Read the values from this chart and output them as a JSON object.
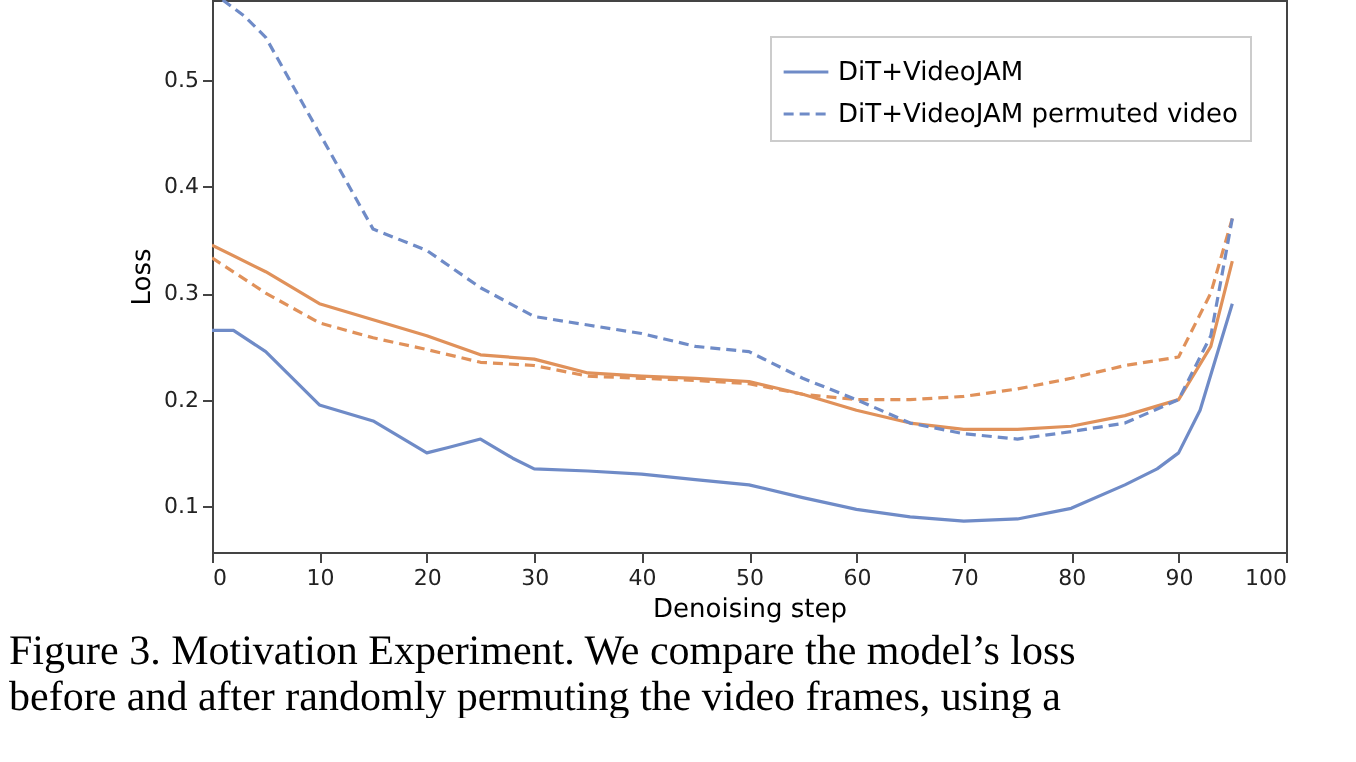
{
  "chart_data": {
    "type": "line",
    "xlabel": "Denoising step",
    "ylabel": "Loss",
    "xlim": [
      0,
      100
    ],
    "xticks": [
      0,
      10,
      20,
      30,
      40,
      50,
      60,
      70,
      80,
      90,
      100
    ],
    "ylim": [
      0.057,
      0.575
    ],
    "yticks": [
      0.1,
      0.2,
      0.3,
      0.4,
      0.5
    ],
    "legend": "top right",
    "grid": false,
    "series": [
      {
        "color": "#e0915a",
        "line_style": "solid",
        "x": [
          0,
          5,
          10,
          15,
          20,
          25,
          30,
          35,
          40,
          45,
          50,
          55,
          60,
          65,
          70,
          75,
          80,
          85,
          90,
          93,
          95
        ],
        "values": [
          0.345,
          0.32,
          0.29,
          0.275,
          0.26,
          0.242,
          0.238,
          0.225,
          0.222,
          0.22,
          0.217,
          0.205,
          0.19,
          0.178,
          0.172,
          0.172,
          0.175,
          0.185,
          0.2,
          0.25,
          0.33
        ]
      },
      {
        "color": "#e0915a",
        "line_style": "dashed",
        "x": [
          0,
          5,
          10,
          15,
          20,
          25,
          30,
          35,
          40,
          45,
          50,
          55,
          60,
          65,
          70,
          75,
          80,
          85,
          90,
          93,
          95
        ],
        "values": [
          0.333,
          0.3,
          0.272,
          0.258,
          0.247,
          0.235,
          0.232,
          0.222,
          0.22,
          0.218,
          0.215,
          0.205,
          0.2,
          0.2,
          0.203,
          0.21,
          0.22,
          0.232,
          0.24,
          0.3,
          0.37
        ]
      },
      {
        "name": "DiT+VideoJAM",
        "color": "#6f8bc7",
        "line_style": "solid",
        "x": [
          0,
          2,
          5,
          10,
          15,
          20,
          22,
          25,
          28,
          30,
          35,
          40,
          45,
          50,
          55,
          60,
          65,
          70,
          75,
          80,
          85,
          88,
          90,
          92,
          95
        ],
        "values": [
          0.265,
          0.265,
          0.245,
          0.195,
          0.18,
          0.15,
          0.155,
          0.163,
          0.145,
          0.135,
          0.133,
          0.13,
          0.125,
          0.12,
          0.108,
          0.097,
          0.09,
          0.086,
          0.088,
          0.098,
          0.12,
          0.135,
          0.15,
          0.19,
          0.29
        ]
      },
      {
        "name": "DiT+VideoJAM permuted video",
        "color": "#6f8bc7",
        "line_style": "dashed",
        "x": [
          1,
          3,
          5,
          10,
          15,
          20,
          25,
          30,
          35,
          40,
          45,
          50,
          55,
          60,
          65,
          70,
          75,
          80,
          85,
          90,
          93,
          95
        ],
        "values": [
          0.575,
          0.56,
          0.54,
          0.45,
          0.36,
          0.34,
          0.305,
          0.278,
          0.27,
          0.262,
          0.25,
          0.245,
          0.22,
          0.2,
          0.178,
          0.168,
          0.163,
          0.17,
          0.178,
          0.2,
          0.26,
          0.37
        ]
      }
    ],
    "annotations": [
      "Figure 3. Motivation Experiment. We compare the model’s loss",
      "before and after randomly permuting the video frames, using a"
    ]
  }
}
